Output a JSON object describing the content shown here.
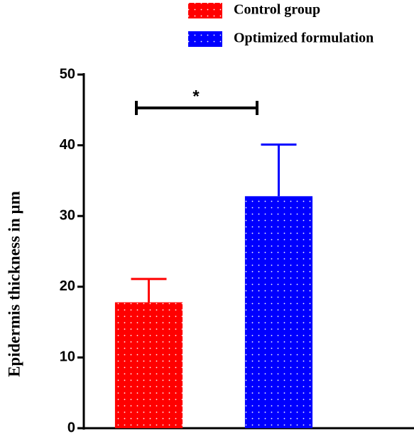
{
  "chart_data": {
    "type": "bar",
    "y_label": "Epidermis thickness in µm",
    "categories": [
      null,
      null
    ],
    "legend": [
      "Control group",
      "Optimized formulation"
    ],
    "values": [
      17.8,
      32.8
    ],
    "errors": [
      3.3,
      7.3
    ],
    "colors": [
      "#ff0000",
      "#0000ff"
    ],
    "annotation": "*",
    "ylim": [
      0,
      50
    ],
    "yticks": [
      0,
      10,
      20,
      30,
      40,
      50
    ],
    "grid": false
  }
}
